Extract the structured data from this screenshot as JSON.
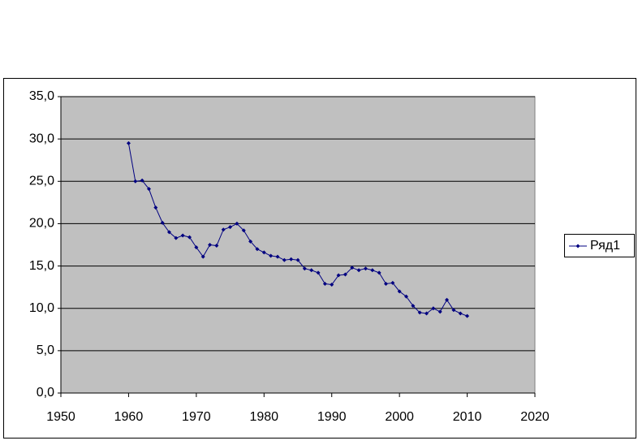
{
  "chart_data": {
    "type": "line",
    "x": [
      1960,
      1961,
      1962,
      1963,
      1964,
      1965,
      1966,
      1967,
      1968,
      1969,
      1970,
      1971,
      1972,
      1973,
      1974,
      1975,
      1976,
      1977,
      1978,
      1979,
      1980,
      1981,
      1982,
      1983,
      1984,
      1985,
      1986,
      1987,
      1988,
      1989,
      1990,
      1991,
      1992,
      1993,
      1994,
      1995,
      1996,
      1997,
      1998,
      1999,
      2000,
      2001,
      2002,
      2003,
      2004,
      2005,
      2006,
      2007,
      2008,
      2009,
      2010
    ],
    "series": [
      {
        "name": "Ряд1",
        "color": "#000080",
        "values": [
          29.5,
          25.0,
          25.1,
          24.1,
          21.9,
          20.1,
          19.0,
          18.3,
          18.6,
          18.4,
          17.2,
          16.1,
          17.5,
          17.4,
          19.3,
          19.6,
          20.0,
          19.2,
          17.9,
          17.0,
          16.6,
          16.2,
          16.1,
          15.7,
          15.8,
          15.7,
          14.7,
          14.5,
          14.2,
          12.9,
          12.8,
          13.9,
          14.0,
          14.8,
          14.5,
          14.7,
          14.5,
          14.2,
          12.9,
          13.0,
          12.0,
          11.4,
          10.3,
          9.5,
          9.4,
          10.0,
          9.6,
          11.0,
          9.8,
          9.4,
          9.1
        ]
      }
    ],
    "xlim": [
      1950,
      2020
    ],
    "xticks": [
      1950,
      1960,
      1970,
      1980,
      1990,
      2000,
      2010,
      2020
    ],
    "ylim": [
      0,
      35
    ],
    "yticks": [
      {
        "value": 0,
        "label": "0,0"
      },
      {
        "value": 5,
        "label": "5,0"
      },
      {
        "value": 10,
        "label": "10,0"
      },
      {
        "value": 15,
        "label": "15,0"
      },
      {
        "value": 20,
        "label": "20,0"
      },
      {
        "value": 25,
        "label": "25,0"
      },
      {
        "value": 30,
        "label": "30,0"
      },
      {
        "value": 35,
        "label": "35,0"
      }
    ],
    "grid": true,
    "legend": "right",
    "plot_background": "#c0c0c0"
  }
}
